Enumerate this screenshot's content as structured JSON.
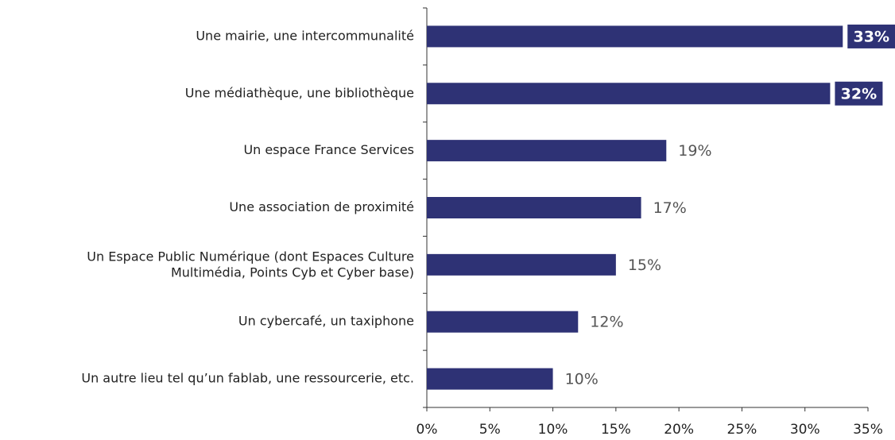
{
  "chart_data": {
    "type": "barh",
    "categories": [
      "Une mairie, une intercommunalité",
      "Une médiathèque, une bibliothèque",
      "Un espace France Services",
      "Une association de proximité",
      "Un Espace Public Numérique (dont Espaces Culture\nMultimédia, Points Cyb et Cyber base)",
      "Un cybercafé, un taxiphone",
      "Un autre lieu tel qu’un fablab, une ressourcerie, etc."
    ],
    "values": [
      33,
      32,
      19,
      17,
      15,
      12,
      10
    ],
    "value_labels": [
      "33%",
      "32%",
      "19%",
      "17%",
      "15%",
      "12%",
      "10%"
    ],
    "boxed_labels": [
      true,
      true,
      false,
      false,
      false,
      false,
      false
    ],
    "color": "#2e3275",
    "xlim": [
      0,
      35
    ],
    "xticks": [
      {
        "value": 0,
        "label": "0%"
      },
      {
        "value": 5,
        "label": "5%"
      },
      {
        "value": 10,
        "label": "10%"
      },
      {
        "value": 15,
        "label": "15%"
      },
      {
        "value": 20,
        "label": "20%"
      },
      {
        "value": 25,
        "label": "25%"
      },
      {
        "value": 30,
        "label": "30%"
      },
      {
        "value": 35,
        "label": "35%"
      }
    ],
    "grid": false
  }
}
